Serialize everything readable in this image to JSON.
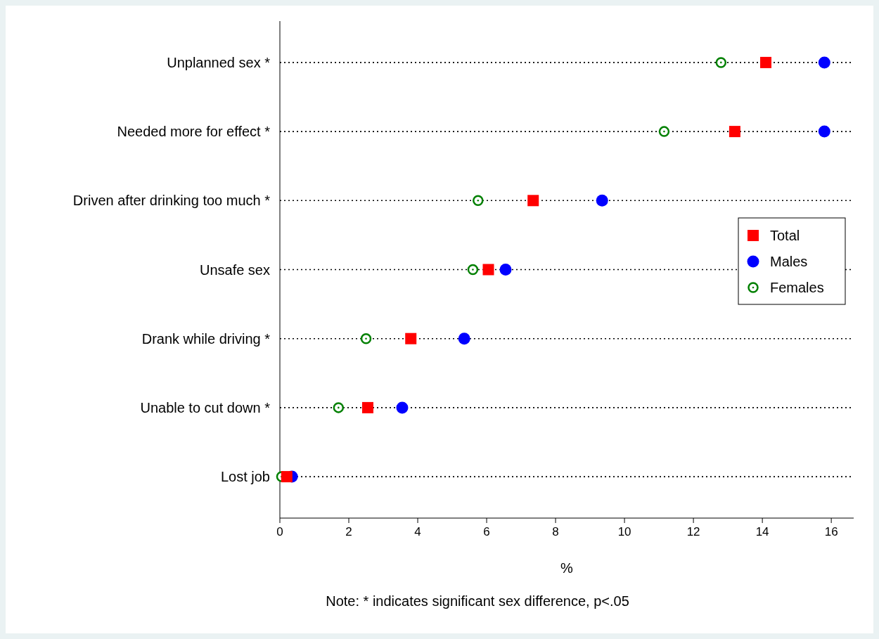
{
  "chart_data": {
    "type": "scatter",
    "orientation": "horizontal",
    "xlabel": "%",
    "categories": [
      "Unplanned sex *",
      "Needed more for effect *",
      "Driven after drinking too much *",
      "Unsafe sex",
      "Drank while driving *",
      "Unable to cut down *",
      "Lost job"
    ],
    "series": [
      {
        "name": "Total",
        "color": "#ff0000",
        "marker": "square",
        "values": [
          14.1,
          13.2,
          7.35,
          6.05,
          3.8,
          2.55,
          0.2
        ]
      },
      {
        "name": "Males",
        "color": "#0000ff",
        "marker": "circle",
        "values": [
          15.8,
          15.8,
          9.35,
          6.55,
          5.35,
          3.55,
          0.35
        ]
      },
      {
        "name": "Females",
        "color": "#008000",
        "marker": "circle",
        "values": [
          12.8,
          11.15,
          5.75,
          5.6,
          2.5,
          1.7,
          0.05
        ]
      }
    ],
    "xlim": [
      0,
      16.65
    ],
    "xticks": [
      0,
      2,
      4,
      6,
      8,
      10,
      12,
      14,
      16
    ],
    "grid": "y",
    "line_style": "dotted",
    "legend": "right",
    "annotations": [
      "Note: * indicates significant sex difference, p<.05"
    ]
  }
}
